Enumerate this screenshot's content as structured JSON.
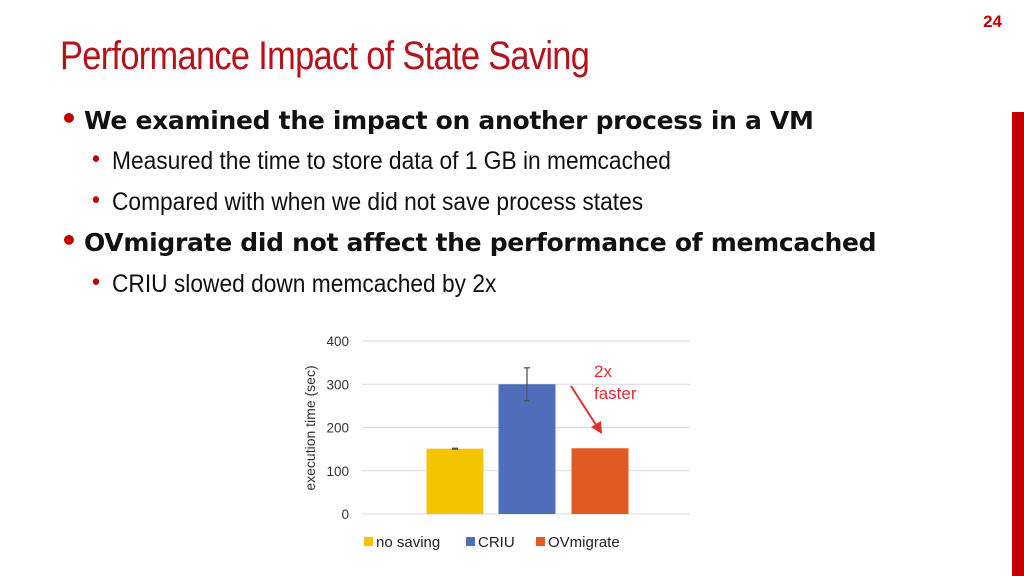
{
  "slide_number": "24",
  "title": "Performance Impact of State Saving",
  "bullets": [
    {
      "text": "We examined the impact on another process in a VM",
      "level": 1
    },
    {
      "text": "Measured the time to store data of 1 GB in memcached",
      "level": 2
    },
    {
      "text": "Compared with when we did not save process states",
      "level": 2
    },
    {
      "text": "OVmigrate did not affect the performance of memcached",
      "level": 1
    },
    {
      "text": "CRIU slowed down memcached by 2x",
      "level": 2
    }
  ],
  "colors": {
    "accent": "#c00000",
    "title": "#b5121b",
    "annotation": "#e03030"
  },
  "chart_data": {
    "type": "bar",
    "categories": [
      "no saving",
      "CRIU",
      "OVmigrate"
    ],
    "values": [
      151,
      300,
      152
    ],
    "error": [
      1,
      38,
      0
    ],
    "colors": [
      "#f5c400",
      "#4f6db8",
      "#e05a24"
    ],
    "ylabel": "execution time (sec)",
    "ylim": [
      0,
      400
    ],
    "yticks": [
      0,
      100,
      200,
      300,
      400
    ],
    "grid": true,
    "legend": "bottom",
    "annotation": {
      "line1": "2x",
      "line2": "faster"
    }
  }
}
